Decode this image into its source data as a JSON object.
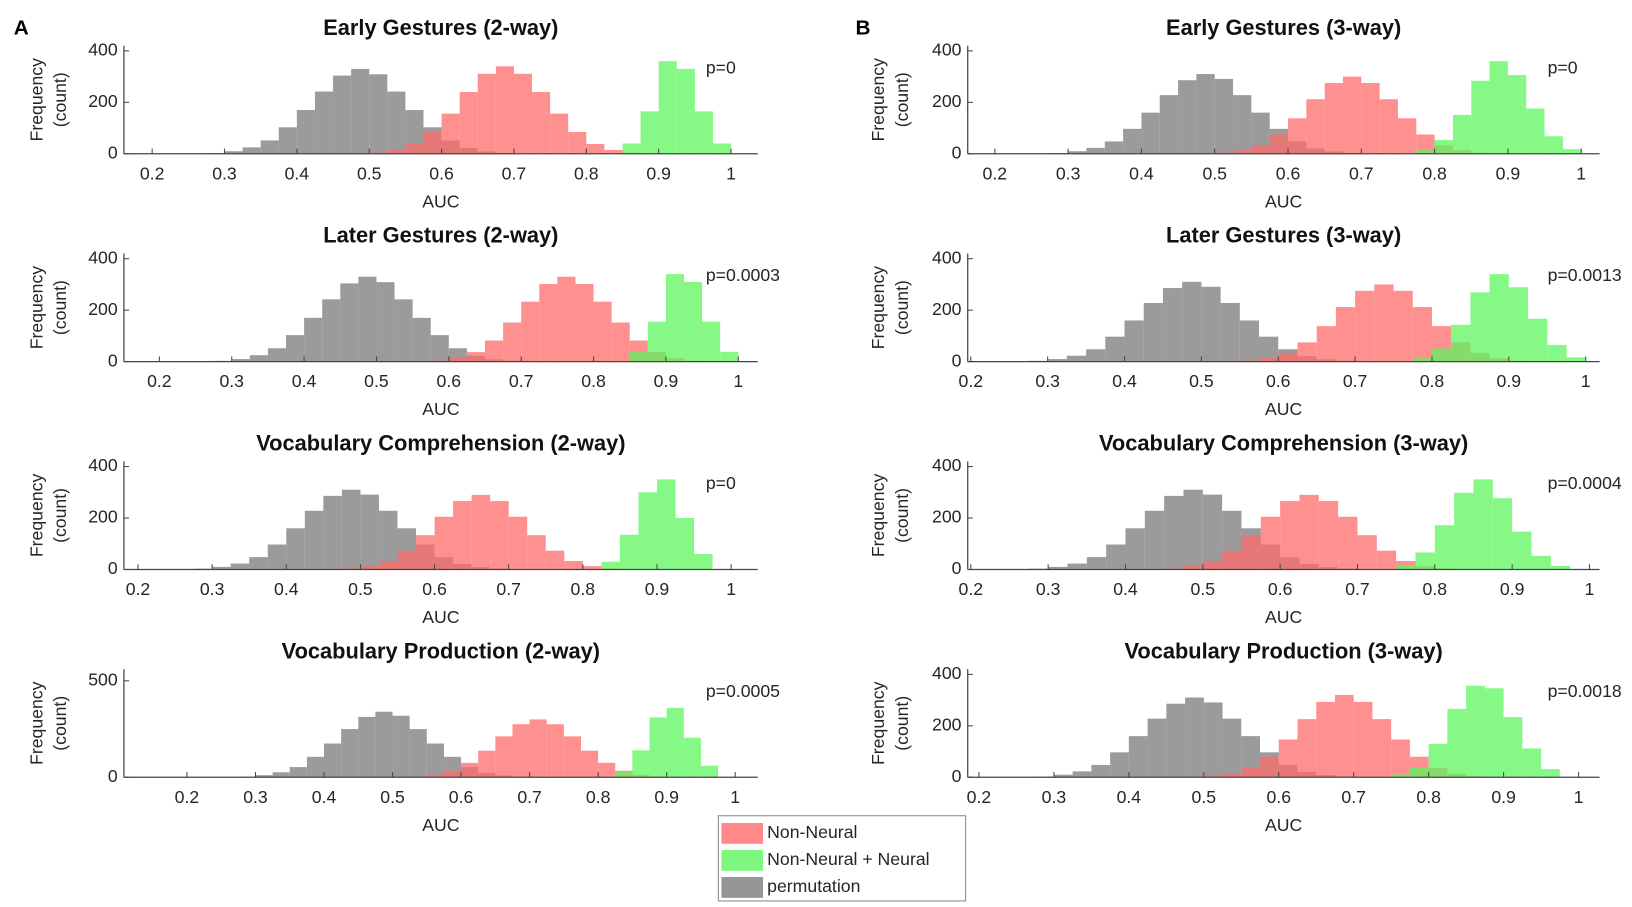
{
  "panel_labels": [
    "A",
    "B"
  ],
  "legend": [
    {
      "name": "Non-Neural",
      "color": "#ff6b6b"
    },
    {
      "name": "Non-Neural + Neural",
      "color": "#5ef55e"
    },
    {
      "name": "permutation",
      "color": "#7a7a7a"
    }
  ],
  "chart_data": [
    {
      "type": "histogram",
      "title": "Early Gestures (2-way)",
      "annotation": "p=0",
      "xlabel": "AUC",
      "ylabel": [
        "Frequency",
        "(count)"
      ],
      "xlim": [
        0.161,
        1.037
      ],
      "xticks": [
        0.2,
        0.3,
        0.4,
        0.5,
        0.6,
        0.7,
        0.8,
        0.9,
        1
      ],
      "ylim": [
        0,
        420
      ],
      "yticks": [
        0,
        200,
        400
      ],
      "series": [
        {
          "bins": [
            0.5,
            0.525,
            0.55,
            0.575,
            0.6,
            0.625,
            0.65,
            0.675,
            0.7,
            0.725,
            0.75,
            0.775,
            0.8,
            0.825,
            0.85,
            0.875
          ],
          "values": [
            4,
            15,
            38,
            85,
            156,
            240,
            311,
            340,
            311,
            240,
            156,
            85,
            38,
            15,
            4
          ]
        },
        {
          "bins": [
            0.85,
            0.875,
            0.9,
            0.925,
            0.95,
            0.975,
            1.0
          ],
          "values": [
            40,
            165,
            360,
            330,
            165,
            40
          ]
        },
        {
          "bins": [
            0.275,
            0.3,
            0.325,
            0.35,
            0.375,
            0.4,
            0.425,
            0.45,
            0.475,
            0.5,
            0.525,
            0.55,
            0.575,
            0.6,
            0.625,
            0.65,
            0.675,
            0.7
          ],
          "values": [
            3,
            10,
            25,
            52,
            103,
            170,
            242,
            304,
            330,
            309,
            242,
            170,
            103,
            52,
            23,
            9,
            3
          ]
        }
      ]
    },
    {
      "type": "histogram",
      "title": "Later Gestures (2-way)",
      "annotation": "p=0.0003",
      "xlabel": "AUC",
      "ylabel": [
        "Frequency",
        "(count)"
      ],
      "xlim": [
        0.151,
        1.027
      ],
      "xticks": [
        0.2,
        0.3,
        0.4,
        0.5,
        0.6,
        0.7,
        0.8,
        0.9,
        1
      ],
      "ylim": [
        0,
        420
      ],
      "yticks": [
        0,
        200,
        400
      ],
      "series": [
        {
          "bins": [
            0.575,
            0.6,
            0.625,
            0.65,
            0.675,
            0.7,
            0.725,
            0.75,
            0.775,
            0.8,
            0.825,
            0.85,
            0.875,
            0.9,
            0.925,
            0.95
          ],
          "values": [
            4,
            14,
            37,
            82,
            152,
            233,
            302,
            330,
            302,
            233,
            152,
            82,
            37,
            14,
            4
          ]
        },
        {
          "bins": [
            0.85,
            0.875,
            0.9,
            0.925,
            0.95,
            0.975,
            1.0
          ],
          "values": [
            38,
            155,
            340,
            310,
            155,
            38
          ]
        },
        {
          "bins": [
            0.275,
            0.3,
            0.325,
            0.35,
            0.375,
            0.4,
            0.425,
            0.45,
            0.475,
            0.5,
            0.525,
            0.55,
            0.575,
            0.6,
            0.625,
            0.65,
            0.675,
            0.7
          ],
          "values": [
            3,
            10,
            25,
            52,
            103,
            170,
            242,
            304,
            330,
            309,
            242,
            170,
            103,
            52,
            23,
            9,
            3
          ]
        }
      ]
    },
    {
      "type": "histogram",
      "title": "Vocabulary Comprehension (2-way)",
      "annotation": "p=0",
      "xlabel": "AUC",
      "ylabel": [
        "Frequency",
        "(count)"
      ],
      "xlim": [
        0.181,
        1.036
      ],
      "xticks": [
        0.2,
        0.3,
        0.4,
        0.5,
        0.6,
        0.7,
        0.8,
        0.9,
        1
      ],
      "ylim": [
        0,
        420
      ],
      "yticks": [
        0,
        200,
        400
      ],
      "series": [
        {
          "bins": [
            0.475,
            0.5,
            0.525,
            0.55,
            0.575,
            0.6,
            0.625,
            0.65,
            0.675,
            0.7,
            0.725,
            0.75,
            0.775,
            0.8,
            0.825,
            0.85
          ],
          "values": [
            4,
            13,
            33,
            73,
            133,
            205,
            266,
            290,
            266,
            205,
            133,
            73,
            33,
            13,
            4
          ]
        },
        {
          "bins": [
            0.825,
            0.85,
            0.875,
            0.9,
            0.925,
            0.95,
            0.975
          ],
          "values": [
            30,
            135,
            300,
            350,
            200,
            60
          ]
        },
        {
          "bins": [
            0.275,
            0.3,
            0.325,
            0.35,
            0.375,
            0.4,
            0.425,
            0.45,
            0.475,
            0.5,
            0.525,
            0.55,
            0.575,
            0.6,
            0.625,
            0.65,
            0.675,
            0.7
          ],
          "values": [
            3,
            10,
            23,
            48,
            97,
            160,
            228,
            286,
            310,
            291,
            228,
            160,
            97,
            48,
            21,
            9,
            3
          ]
        }
      ]
    },
    {
      "type": "histogram",
      "title": "Vocabulary Production (2-way)",
      "annotation": "p=0.0005",
      "xlabel": "AUC",
      "ylabel": [
        "Frequency",
        "(count)"
      ],
      "xlim": [
        0.108,
        1.033
      ],
      "xticks": [
        0.2,
        0.3,
        0.4,
        0.5,
        0.6,
        0.7,
        0.8,
        0.9,
        1
      ],
      "ylim": [
        0,
        560
      ],
      "yticks": [
        0,
        500
      ],
      "series": [
        {
          "bins": [
            0.525,
            0.55,
            0.575,
            0.6,
            0.625,
            0.65,
            0.675,
            0.7,
            0.725,
            0.75,
            0.775,
            0.8,
            0.825,
            0.85,
            0.875,
            0.9
          ],
          "values": [
            4,
            13,
            34,
            75,
            138,
            212,
            275,
            300,
            275,
            212,
            138,
            75,
            34,
            13,
            4
          ]
        },
        {
          "bins": [
            0.825,
            0.85,
            0.875,
            0.9,
            0.925,
            0.95,
            0.975
          ],
          "values": [
            30,
            140,
            310,
            360,
            205,
            60
          ]
        },
        {
          "bins": [
            0.275,
            0.3,
            0.325,
            0.35,
            0.375,
            0.4,
            0.425,
            0.45,
            0.475,
            0.5,
            0.525,
            0.55,
            0.575,
            0.6,
            0.625,
            0.65,
            0.675,
            0.7
          ],
          "values": [
            3,
            11,
            26,
            53,
            106,
            175,
            250,
            313,
            340,
            319,
            250,
            175,
            106,
            53,
            23,
            10,
            3
          ]
        }
      ]
    },
    {
      "type": "histogram",
      "title": "Early Gestures (3-way)",
      "annotation": "p=0",
      "xlabel": "AUC",
      "ylabel": [
        "Frequency",
        "(count)"
      ],
      "xlim": [
        0.163,
        1.025
      ],
      "xticks": [
        0.2,
        0.3,
        0.4,
        0.5,
        0.6,
        0.7,
        0.8,
        0.9,
        1
      ],
      "ylim": [
        0,
        420
      ],
      "yticks": [
        0,
        200,
        400
      ],
      "series": [
        {
          "bins": [
            0.5,
            0.525,
            0.55,
            0.575,
            0.6,
            0.625,
            0.65,
            0.675,
            0.7,
            0.725,
            0.75,
            0.775,
            0.8,
            0.825,
            0.85,
            0.875
          ],
          "values": [
            4,
            13,
            34,
            75,
            138,
            212,
            275,
            300,
            275,
            212,
            138,
            75,
            34,
            13,
            4
          ]
        },
        {
          "bins": [
            0.775,
            0.8,
            0.825,
            0.85,
            0.875,
            0.9,
            0.925,
            0.95,
            0.975,
            1.0
          ],
          "values": [
            14,
            54,
            151,
            284,
            360,
            306,
            176,
            68,
            18
          ]
        },
        {
          "bins": [
            0.275,
            0.3,
            0.325,
            0.35,
            0.375,
            0.4,
            0.425,
            0.45,
            0.475,
            0.5,
            0.525,
            0.55,
            0.575,
            0.6,
            0.625,
            0.65,
            0.675,
            0.7
          ],
          "values": [
            3,
            10,
            23,
            48,
            97,
            160,
            228,
            286,
            310,
            291,
            228,
            160,
            97,
            48,
            21,
            9,
            3
          ]
        }
      ]
    },
    {
      "type": "histogram",
      "title": "Later Gestures (3-way)",
      "annotation": "p=0.0013",
      "xlabel": "AUC",
      "ylabel": [
        "Frequency",
        "(count)"
      ],
      "xlim": [
        0.196,
        1.018
      ],
      "xticks": [
        0.2,
        0.3,
        0.4,
        0.5,
        0.6,
        0.7,
        0.8,
        0.9,
        1
      ],
      "ylim": [
        0,
        420
      ],
      "yticks": [
        0,
        200,
        400
      ],
      "series": [
        {
          "bins": [
            0.55,
            0.575,
            0.6,
            0.625,
            0.65,
            0.675,
            0.7,
            0.725,
            0.75,
            0.775,
            0.8,
            0.825,
            0.85,
            0.875,
            0.9,
            0.925
          ],
          "values": [
            4,
            13,
            34,
            75,
            138,
            212,
            275,
            300,
            275,
            212,
            138,
            75,
            34,
            13,
            4
          ]
        },
        {
          "bins": [
            0.775,
            0.8,
            0.825,
            0.85,
            0.875,
            0.9,
            0.925,
            0.95,
            0.975,
            1.0
          ],
          "values": [
            13,
            51,
            143,
            269,
            340,
            289,
            167,
            65,
            17
          ]
        },
        {
          "bins": [
            0.275,
            0.3,
            0.325,
            0.35,
            0.375,
            0.4,
            0.425,
            0.45,
            0.475,
            0.5,
            0.525,
            0.55,
            0.575,
            0.6,
            0.625,
            0.65,
            0.675,
            0.7
          ],
          "values": [
            3,
            10,
            23,
            48,
            97,
            160,
            228,
            286,
            310,
            291,
            228,
            160,
            97,
            48,
            21,
            9,
            3
          ]
        }
      ]
    },
    {
      "type": "histogram",
      "title": "Vocabulary Comprehension (3-way)",
      "annotation": "p=0.0004",
      "xlabel": "AUC",
      "ylabel": [
        "Frequency",
        "(count)"
      ],
      "xlim": [
        0.196,
        1.013
      ],
      "xticks": [
        0.2,
        0.3,
        0.4,
        0.5,
        0.6,
        0.7,
        0.8,
        0.9,
        1
      ],
      "ylim": [
        0,
        420
      ],
      "yticks": [
        0,
        200,
        400
      ],
      "series": [
        {
          "bins": [
            0.45,
            0.475,
            0.5,
            0.525,
            0.55,
            0.575,
            0.6,
            0.625,
            0.65,
            0.675,
            0.7,
            0.725,
            0.75,
            0.775,
            0.8,
            0.825
          ],
          "values": [
            4,
            13,
            33,
            73,
            133,
            205,
            266,
            290,
            266,
            205,
            133,
            73,
            33,
            13,
            4
          ]
        },
        {
          "bins": [
            0.75,
            0.775,
            0.8,
            0.825,
            0.85,
            0.875,
            0.9,
            0.925,
            0.95,
            0.975
          ],
          "values": [
            18,
            66,
            172,
            298,
            350,
            277,
            147,
            53,
            14
          ]
        },
        {
          "bins": [
            0.275,
            0.3,
            0.325,
            0.35,
            0.375,
            0.4,
            0.425,
            0.45,
            0.475,
            0.5,
            0.525,
            0.55,
            0.575,
            0.6,
            0.625,
            0.65,
            0.675,
            0.7
          ],
          "values": [
            3,
            10,
            23,
            48,
            97,
            160,
            228,
            286,
            310,
            291,
            228,
            160,
            97,
            48,
            21,
            9,
            3
          ]
        }
      ]
    },
    {
      "type": "histogram",
      "title": "Vocabulary Production (3-way)",
      "annotation": "p=0.0018",
      "xlabel": "AUC",
      "ylabel": [
        "Frequency",
        "(count)"
      ],
      "xlim": [
        0.185,
        1.028
      ],
      "xticks": [
        0.2,
        0.3,
        0.4,
        0.5,
        0.6,
        0.7,
        0.8,
        0.9,
        1
      ],
      "ylim": [
        0,
        420
      ],
      "yticks": [
        0,
        200,
        400
      ],
      "series": [
        {
          "bins": [
            0.5,
            0.525,
            0.55,
            0.575,
            0.6,
            0.625,
            0.65,
            0.675,
            0.7,
            0.725,
            0.75,
            0.775,
            0.8,
            0.825,
            0.85,
            0.875
          ],
          "values": [
            4,
            14,
            36,
            80,
            147,
            226,
            293,
            320,
            293,
            226,
            147,
            80,
            36,
            14,
            4
          ]
        },
        {
          "bins": [
            0.75,
            0.775,
            0.8,
            0.825,
            0.85,
            0.875,
            0.9,
            0.925,
            0.95,
            0.975
          ],
          "values": [
            11,
            40,
            130,
            266,
            356,
            346,
            234,
            112,
            32
          ]
        },
        {
          "bins": [
            0.275,
            0.3,
            0.325,
            0.35,
            0.375,
            0.4,
            0.425,
            0.45,
            0.475,
            0.5,
            0.525,
            0.55,
            0.575,
            0.6,
            0.625,
            0.65,
            0.675,
            0.7
          ],
          "values": [
            3,
            10,
            23,
            48,
            97,
            160,
            228,
            286,
            310,
            291,
            228,
            160,
            97,
            48,
            21,
            9,
            3
          ]
        }
      ]
    }
  ]
}
